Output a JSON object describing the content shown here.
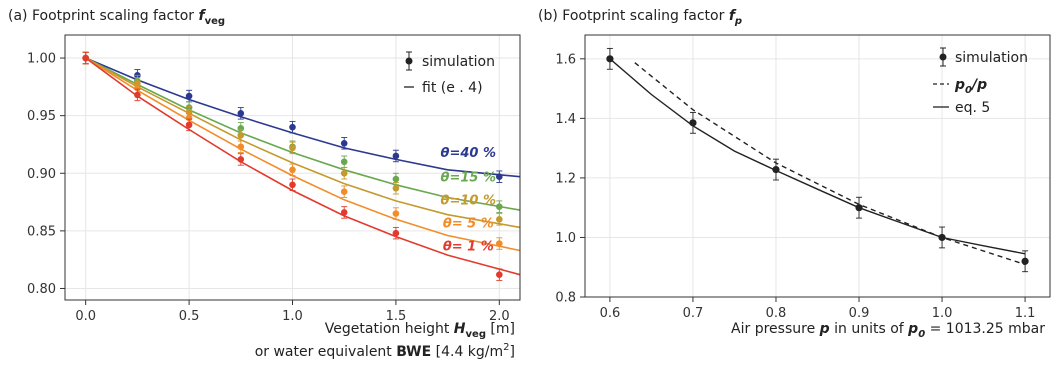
{
  "panel_a": {
    "title": "(a) Footprint scaling factor",
    "title_sym": "f",
    "title_sub": "veg",
    "xlabel_line1_pre": "Vegetation height ",
    "xlabel_line1_sym": "H",
    "xlabel_line1_sub": "veg",
    "xlabel_line1_post": " [m]",
    "xlabel_line2_pre": "or water equivalent ",
    "xlabel_line2_bold": "BWE",
    "xlabel_line2_post": " [4.4 kg/m",
    "xlabel_line2_sup": "2",
    "xlabel_line2_end": "]",
    "legend_sim": "simulation",
    "legend_fit": "fit (e . 4)",
    "curve_label_sym": "θ"
  },
  "panel_b": {
    "title": "(b) Footprint scaling factor",
    "title_sym": "f",
    "title_sub": "p",
    "xlabel_pre": "Air pressure ",
    "xlabel_sym": "p",
    "xlabel_mid": " in units of ",
    "xlabel_sym2": "p",
    "xlabel_sub2": "0",
    "xlabel_post": " = 1013.25 mbar",
    "legend_sim": "simulation",
    "legend_ratio_num": "p",
    "legend_ratio_sub": "0",
    "legend_ratio_den": "/p",
    "legend_eq": "eq. 5"
  },
  "chart_data": [
    {
      "type": "line",
      "title": "(a) Footprint scaling factor f_veg",
      "xlabel": "Vegetation height H_veg [m] or water equivalent BWE [4.4 kg/m²]",
      "ylabel": "",
      "xlim": [
        -0.1,
        2.1
      ],
      "ylim": [
        0.79,
        1.02
      ],
      "xticks": [
        0.0,
        0.5,
        1.0,
        1.5,
        2.0
      ],
      "yticks": [
        0.8,
        0.85,
        0.9,
        0.95,
        1.0
      ],
      "xtick_labels": [
        "0.0",
        "0.5",
        "1.0",
        "1.5",
        "2.0"
      ],
      "ytick_labels": [
        "0.80",
        "0.85",
        "0.90",
        "0.95",
        "1.00"
      ],
      "grid": true,
      "legend": "top-right",
      "x": [
        0,
        0.25,
        0.5,
        0.75,
        1.0,
        1.25,
        1.5,
        2.0
      ],
      "series": [
        {
          "name": "θ=40 %",
          "color": "#2b3990",
          "label_x": 1.85,
          "label_y": 0.914,
          "points": [
            1.0,
            0.985,
            0.967,
            0.952,
            0.94,
            0.926,
            0.915,
            0.897
          ],
          "fit": [
            [
              0,
              1.0
            ],
            [
              0.25,
              0.981
            ],
            [
              0.5,
              0.964
            ],
            [
              0.75,
              0.949
            ],
            [
              1.0,
              0.935
            ],
            [
              1.25,
              0.922
            ],
            [
              1.5,
              0.912
            ],
            [
              1.75,
              0.903
            ],
            [
              2.1,
              0.897
            ]
          ]
        },
        {
          "name": "θ=15 %",
          "color": "#6aa84f",
          "label_x": 1.85,
          "label_y": 0.893,
          "points": [
            1.0,
            0.98,
            0.957,
            0.939,
            0.923,
            0.91,
            0.895,
            0.871
          ],
          "fit": [
            [
              0,
              1.0
            ],
            [
              0.25,
              0.977
            ],
            [
              0.5,
              0.955
            ],
            [
              0.75,
              0.935
            ],
            [
              1.0,
              0.918
            ],
            [
              1.25,
              0.903
            ],
            [
              1.5,
              0.89
            ],
            [
              1.75,
              0.879
            ],
            [
              2.1,
              0.868
            ]
          ]
        },
        {
          "name": "θ=10 %",
          "color": "#c49a2c",
          "label_x": 1.85,
          "label_y": 0.873,
          "points": [
            1.0,
            0.978,
            0.953,
            0.933,
            0.922,
            0.9,
            0.887,
            0.86
          ],
          "fit": [
            [
              0,
              1.0
            ],
            [
              0.25,
              0.975
            ],
            [
              0.5,
              0.952
            ],
            [
              0.75,
              0.929
            ],
            [
              1.0,
              0.909
            ],
            [
              1.25,
              0.891
            ],
            [
              1.5,
              0.876
            ],
            [
              1.75,
              0.864
            ],
            [
              2.1,
              0.853
            ]
          ]
        },
        {
          "name": "θ= 5 %",
          "color": "#f28c28",
          "label_x": 1.85,
          "label_y": 0.853,
          "points": [
            1.0,
            0.974,
            0.948,
            0.923,
            0.903,
            0.884,
            0.865,
            0.839
          ],
          "fit": [
            [
              0,
              1.0
            ],
            [
              0.25,
              0.972
            ],
            [
              0.5,
              0.946
            ],
            [
              0.75,
              0.921
            ],
            [
              1.0,
              0.898
            ],
            [
              1.25,
              0.877
            ],
            [
              1.5,
              0.86
            ],
            [
              1.75,
              0.846
            ],
            [
              2.1,
              0.833
            ]
          ]
        },
        {
          "name": "θ= 1 %",
          "color": "#e23b2e",
          "label_x": 1.85,
          "label_y": 0.833,
          "points": [
            1.0,
            0.968,
            0.942,
            0.912,
            0.89,
            0.866,
            0.848,
            0.812
          ],
          "fit": [
            [
              0,
              1.0
            ],
            [
              0.25,
              0.967
            ],
            [
              0.5,
              0.938
            ],
            [
              0.75,
              0.91
            ],
            [
              1.0,
              0.885
            ],
            [
              1.25,
              0.863
            ],
            [
              1.5,
              0.845
            ],
            [
              1.75,
              0.829
            ],
            [
              2.1,
              0.812
            ]
          ]
        }
      ],
      "error": 0.005
    },
    {
      "type": "line",
      "title": "(b) Footprint scaling factor f_p",
      "xlabel": "Air pressure p in units of p0 = 1013.25 mbar",
      "ylabel": "",
      "xlim": [
        0.57,
        1.13
      ],
      "ylim": [
        0.8,
        1.68
      ],
      "xticks": [
        0.6,
        0.7,
        0.8,
        0.9,
        1.0,
        1.1
      ],
      "yticks": [
        0.8,
        1.0,
        1.2,
        1.4,
        1.6
      ],
      "xtick_labels": [
        "0.6",
        "0.7",
        "0.8",
        "0.9",
        "1.0",
        "1.1"
      ],
      "ytick_labels": [
        "0.8",
        "1.0",
        "1.2",
        "1.4",
        "1.6"
      ],
      "grid": true,
      "legend": "top-right",
      "series": [
        {
          "name": "simulation",
          "x": [
            0.6,
            0.7,
            0.8,
            0.9,
            1.0,
            1.1
          ],
          "y": [
            1.6,
            1.385,
            1.228,
            1.1,
            1.0,
            0.92
          ],
          "error": 0.035
        },
        {
          "name": "p0/p",
          "style": "dashed",
          "x": [
            0.63,
            0.7,
            0.8,
            0.9,
            1.0,
            1.1
          ],
          "y": [
            1.587,
            1.429,
            1.25,
            1.111,
            1.0,
            0.909
          ]
        },
        {
          "name": "eq. 5",
          "style": "solid",
          "x": [
            0.6,
            0.65,
            0.7,
            0.75,
            0.8,
            0.85,
            0.9,
            0.95,
            1.0,
            1.05,
            1.1
          ],
          "y": [
            1.6,
            1.48,
            1.375,
            1.29,
            1.225,
            1.162,
            1.1,
            1.05,
            1.0,
            0.972,
            0.945
          ]
        }
      ]
    }
  ]
}
